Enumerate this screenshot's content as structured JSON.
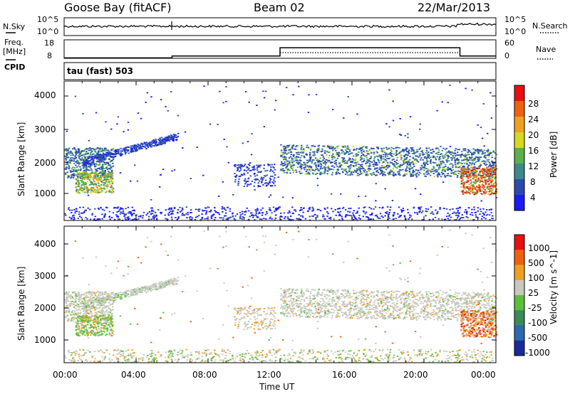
{
  "header": {
    "station": "Goose Bay (fitACF)",
    "beam": "Beam 02",
    "date": "22/Mar/2013"
  },
  "left_labels": {
    "nsky": "N.Sky",
    "freq": "Freq.",
    "mhz": "[MHz]",
    "cpid": "CPID"
  },
  "right_labels": {
    "nsearch": "N.Search",
    "nave": "Nave"
  },
  "top_panel": {
    "left_ticks": [
      "10^5",
      "10^0"
    ],
    "right_ticks": [
      "10^5",
      "10^0"
    ]
  },
  "freq_panel": {
    "left_ticks": [
      "18",
      "8"
    ],
    "right_ticks": [
      "60",
      "0"
    ]
  },
  "cpid_text": "tau (fast) 503",
  "x_axis": {
    "ticks": [
      "00:00",
      "04:00",
      "08:00",
      "12:00",
      "16:00",
      "20:00",
      "00:00"
    ],
    "label": "Time UT"
  },
  "power_panel": {
    "ylabel": "Slant Range [km]",
    "yticks": [
      "4000",
      "3000",
      "2000",
      "1000"
    ],
    "colorbar_label": "Power [dB]",
    "colorbar_ticks": [
      "28",
      "24",
      "20",
      "16",
      "12",
      "8",
      "4"
    ],
    "colors": [
      "#1a1aff",
      "#2a4ab0",
      "#3a8a8a",
      "#5ab04a",
      "#d8d820",
      "#f0a020",
      "#f06010",
      "#e81010"
    ]
  },
  "velocity_panel": {
    "ylabel": "Slant Range [km]",
    "yticks": [
      "4000",
      "3000",
      "2000",
      "1000"
    ],
    "colorbar_label": "Velocity [m s^-1]",
    "colorbar_ticks": [
      "1000",
      "500",
      "100",
      "25",
      "-25",
      "-100",
      "-500",
      "-1000"
    ],
    "colors": [
      "#1a2a9a",
      "#2a6ab0",
      "#3a8a5a",
      "#5abf3a",
      "#c8c8c0",
      "#f0a020",
      "#f06010",
      "#e81010"
    ]
  },
  "chart_data": {
    "type": "heatmap",
    "title": "Goose Bay (fitACF) Beam 02 22/Mar/2013",
    "xlabel": "Time UT",
    "ylabel": "Slant Range [km]",
    "x_range_hours": [
      0,
      24
    ],
    "y_range_km": [
      180,
      4500
    ],
    "panels": [
      "Power [dB]",
      "Velocity [m s^-1]"
    ],
    "power_range_db": [
      0,
      30
    ],
    "velocity_range_ms": [
      -1000,
      1000
    ],
    "scatter_regions": [
      {
        "t0": 0.0,
        "t1": 2.7,
        "r0": 1050,
        "r1": 2400,
        "desc": "morning echoes"
      },
      {
        "t0": 1.0,
        "t1": 6.3,
        "r0": 2000,
        "r1": 2800,
        "desc": "rising band"
      },
      {
        "t0": 9.5,
        "t1": 11.7,
        "r0": 1250,
        "r1": 2000,
        "desc": "midday patch"
      },
      {
        "t0": 12.0,
        "t1": 24.0,
        "r0": 1600,
        "r1": 2550,
        "desc": "afternoon band"
      },
      {
        "t0": 22.0,
        "t1": 24.0,
        "r0": 1000,
        "r1": 1800,
        "desc": "late strong echoes"
      }
    ],
    "freq_mhz": [
      {
        "t0": 0,
        "t1": 6,
        "value": 9.0
      },
      {
        "t0": 6,
        "t1": 12,
        "value": 10.0
      },
      {
        "t0": 12,
        "t1": 22,
        "value": 14.5
      },
      {
        "t0": 22,
        "t1": 24,
        "value": 10.0
      }
    ],
    "nave": [
      {
        "t0": 0,
        "t1": 24,
        "value": 15
      }
    ]
  }
}
